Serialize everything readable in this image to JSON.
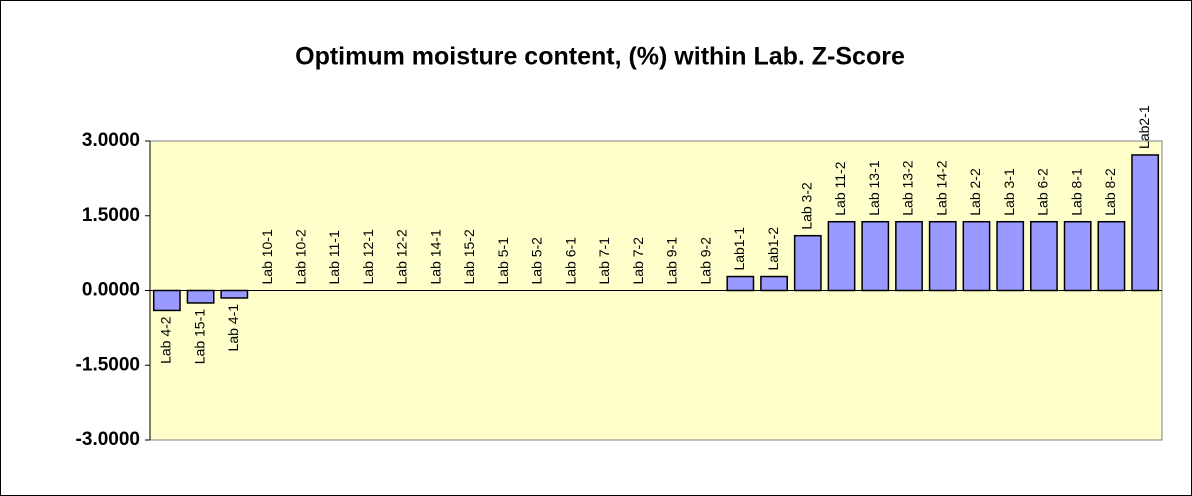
{
  "chart_data": {
    "type": "bar",
    "title": "Optimum moisture content, (%)  within Lab. Z-Score",
    "categories": [
      "Lab 4-2",
      "Lab 15-1",
      "Lab 4-1",
      "Lab 10-1",
      "Lab 10-2",
      "Lab 11-1",
      "Lab 12-1",
      "Lab 12-2",
      "Lab 14-1",
      "Lab 15-2",
      "Lab 5-1",
      "Lab 5-2",
      "Lab 6-1",
      "Lab 7-1",
      "Lab 7-2",
      "Lab 9-1",
      "Lab 9-2",
      "Lab1-1",
      "Lab1-2",
      "Lab 3-2",
      "Lab 11-2",
      "Lab 13-1",
      "Lab 13-2",
      "Lab 14-2",
      "Lab 2-2",
      "Lab 3-1",
      "Lab 6-2",
      "Lab 8-1",
      "Lab 8-2",
      "Lab2-1"
    ],
    "values": [
      -0.4,
      -0.25,
      -0.15,
      0,
      0,
      0,
      0,
      0,
      0,
      0,
      0,
      0,
      0,
      0,
      0,
      0,
      0,
      0.28,
      0.28,
      1.1,
      1.38,
      1.38,
      1.38,
      1.38,
      1.38,
      1.38,
      1.38,
      1.38,
      1.38,
      2.72
    ],
    "color": "#9999ff",
    "ylim": [
      -3,
      3
    ],
    "yticks": [
      {
        "value": 3,
        "label": "3.0000"
      },
      {
        "value": 1.5,
        "label": "1.5000"
      },
      {
        "value": 0,
        "label": "0.0000"
      },
      {
        "value": -1.5,
        "label": "-1.5000"
      },
      {
        "value": -3,
        "label": "-3.0000"
      }
    ],
    "grid": false
  }
}
